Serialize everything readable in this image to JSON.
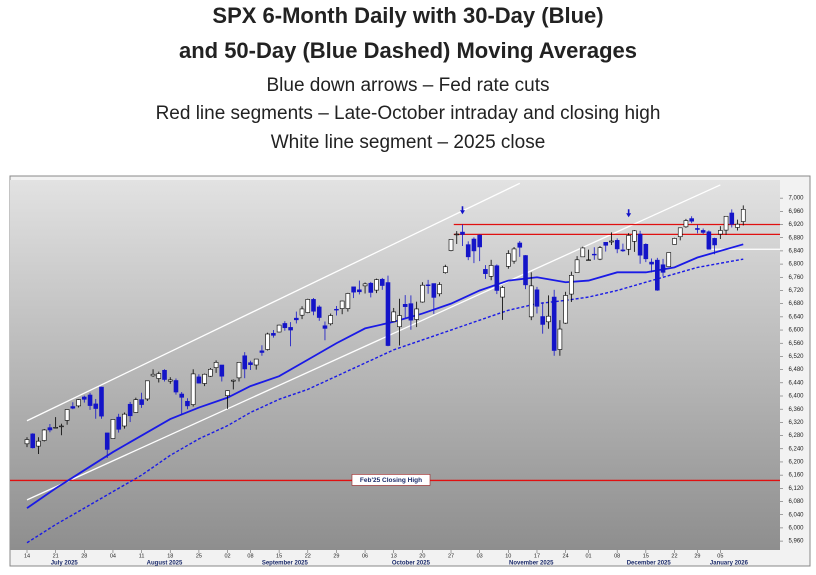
{
  "chart_data": {
    "type": "candlestick",
    "title": [
      "SPX 6-Month Daily with 30-Day (Blue)",
      "and 50-Day (Blue Dashed) Moving Averages"
    ],
    "subtitle": [
      "Blue down arrows – Fed rate cuts",
      "Red line segments – Late-October intraday and closing high",
      "White line segment – 2025 close"
    ],
    "x": [
      "2025-07-14",
      "2025-07-15",
      "2025-07-16",
      "2025-07-17",
      "2025-07-18",
      "2025-07-21",
      "2025-07-22",
      "2025-07-23",
      "2025-07-24",
      "2025-07-25",
      "2025-07-28",
      "2025-07-29",
      "2025-07-30",
      "2025-07-31",
      "2025-08-01",
      "2025-08-04",
      "2025-08-05",
      "2025-08-06",
      "2025-08-07",
      "2025-08-08",
      "2025-08-11",
      "2025-08-12",
      "2025-08-13",
      "2025-08-14",
      "2025-08-15",
      "2025-08-18",
      "2025-08-19",
      "2025-08-20",
      "2025-08-21",
      "2025-08-22",
      "2025-08-25",
      "2025-08-26",
      "2025-08-27",
      "2025-08-28",
      "2025-08-29",
      "2025-09-02",
      "2025-09-03",
      "2025-09-04",
      "2025-09-05",
      "2025-09-08",
      "2025-09-09",
      "2025-09-10",
      "2025-09-11",
      "2025-09-12",
      "2025-09-15",
      "2025-09-16",
      "2025-09-17",
      "2025-09-18",
      "2025-09-19",
      "2025-09-22",
      "2025-09-23",
      "2025-09-24",
      "2025-09-25",
      "2025-09-26",
      "2025-09-29",
      "2025-09-30",
      "2025-10-01",
      "2025-10-02",
      "2025-10-03",
      "2025-10-06",
      "2025-10-07",
      "2025-10-08",
      "2025-10-09",
      "2025-10-10",
      "2025-10-13",
      "2025-10-14",
      "2025-10-15",
      "2025-10-16",
      "2025-10-17",
      "2025-10-20",
      "2025-10-21",
      "2025-10-22",
      "2025-10-23",
      "2025-10-24",
      "2025-10-27",
      "2025-10-28",
      "2025-10-29",
      "2025-10-30",
      "2025-10-31",
      "2025-11-03",
      "2025-11-04",
      "2025-11-05",
      "2025-11-06",
      "2025-11-07",
      "2025-11-10",
      "2025-11-11",
      "2025-11-12",
      "2025-11-13",
      "2025-11-14",
      "2025-11-17",
      "2025-11-18",
      "2025-11-19",
      "2025-11-20",
      "2025-11-21",
      "2025-11-24",
      "2025-11-25",
      "2025-11-26",
      "2025-11-28",
      "2025-12-01",
      "2025-12-02",
      "2025-12-03",
      "2025-12-04",
      "2025-12-05",
      "2025-12-08",
      "2025-12-09",
      "2025-12-10",
      "2025-12-11",
      "2025-12-12",
      "2025-12-15",
      "2025-12-16",
      "2025-12-17",
      "2025-12-18",
      "2025-12-19",
      "2025-12-22",
      "2025-12-23",
      "2025-12-24",
      "2025-12-26",
      "2025-12-29",
      "2025-12-30",
      "2025-12-31",
      "2026-01-02",
      "2026-01-05",
      "2026-01-06",
      "2026-01-07",
      "2026-01-08",
      "2026-01-09"
    ],
    "ohlc": [
      [
        6255,
        6275,
        6245,
        6268
      ],
      [
        6285,
        6287,
        6241,
        6243
      ],
      [
        6248,
        6275,
        6224,
        6263
      ],
      [
        6265,
        6300,
        6262,
        6297
      ],
      [
        6304,
        6315,
        6290,
        6297
      ],
      [
        6304,
        6336,
        6303,
        6305
      ],
      [
        6307,
        6316,
        6281,
        6309
      ],
      [
        6326,
        6360,
        6313,
        6359
      ],
      [
        6368,
        6381,
        6360,
        6363
      ],
      [
        6370,
        6390,
        6365,
        6389
      ],
      [
        6397,
        6401,
        6380,
        6390
      ],
      [
        6403,
        6410,
        6358,
        6371
      ],
      [
        6376,
        6391,
        6331,
        6362
      ],
      [
        6427,
        6428,
        6331,
        6339
      ],
      [
        6288,
        6288,
        6212,
        6238
      ],
      [
        6271,
        6330,
        6271,
        6329
      ],
      [
        6336,
        6346,
        6289,
        6299
      ],
      [
        6309,
        6350,
        6301,
        6345
      ],
      [
        6375,
        6382,
        6321,
        6340
      ],
      [
        6350,
        6395,
        6349,
        6389
      ],
      [
        6389,
        6410,
        6364,
        6374
      ],
      [
        6391,
        6446,
        6385,
        6446
      ],
      [
        6461,
        6481,
        6458,
        6466
      ],
      [
        6453,
        6474,
        6441,
        6468
      ],
      [
        6478,
        6481,
        6444,
        6450
      ],
      [
        6445,
        6457,
        6437,
        6449
      ],
      [
        6447,
        6453,
        6404,
        6412
      ],
      [
        6406,
        6412,
        6343,
        6396
      ],
      [
        6384,
        6393,
        6360,
        6370
      ],
      [
        6374,
        6481,
        6368,
        6467
      ],
      [
        6458,
        6466,
        6438,
        6439
      ],
      [
        6438,
        6468,
        6430,
        6466
      ],
      [
        6460,
        6485,
        6458,
        6481
      ],
      [
        6486,
        6508,
        6470,
        6502
      ],
      [
        6494,
        6494,
        6444,
        6460
      ],
      [
        6401,
        6417,
        6361,
        6416
      ],
      [
        6445,
        6450,
        6420,
        6448
      ],
      [
        6455,
        6502,
        6444,
        6502
      ],
      [
        6522,
        6533,
        6454,
        6482
      ],
      [
        6501,
        6507,
        6479,
        6495
      ],
      [
        6494,
        6512,
        6480,
        6512
      ],
      [
        6537,
        6554,
        6522,
        6532
      ],
      [
        6541,
        6592,
        6538,
        6588
      ],
      [
        6590,
        6600,
        6577,
        6584
      ],
      [
        6594,
        6616,
        6593,
        6615
      ],
      [
        6620,
        6627,
        6598,
        6607
      ],
      [
        6608,
        6624,
        6551,
        6600
      ],
      [
        6636,
        6656,
        6620,
        6631
      ],
      [
        6645,
        6672,
        6633,
        6664
      ],
      [
        6653,
        6695,
        6651,
        6693
      ],
      [
        6693,
        6697,
        6645,
        6657
      ],
      [
        6670,
        6675,
        6628,
        6638
      ],
      [
        6613,
        6626,
        6569,
        6605
      ],
      [
        6619,
        6650,
        6614,
        6644
      ],
      [
        6663,
        6673,
        6644,
        6661
      ],
      [
        6665,
        6689,
        6648,
        6688
      ],
      [
        6665,
        6713,
        6656,
        6711
      ],
      [
        6731,
        6731,
        6697,
        6715
      ],
      [
        6722,
        6750,
        6708,
        6716
      ],
      [
        6734,
        6744,
        6711,
        6740
      ],
      [
        6742,
        6746,
        6699,
        6714
      ],
      [
        6721,
        6756,
        6712,
        6753
      ],
      [
        6754,
        6758,
        6722,
        6735
      ],
      [
        6744,
        6765,
        6551,
        6553
      ],
      [
        6626,
        6667,
        6626,
        6655
      ],
      [
        6610,
        6695,
        6553,
        6644
      ],
      [
        6678,
        6706,
        6638,
        6671
      ],
      [
        6680,
        6705,
        6601,
        6630
      ],
      [
        6632,
        6686,
        6609,
        6664
      ],
      [
        6685,
        6745,
        6683,
        6736
      ],
      [
        6737,
        6752,
        6710,
        6735
      ],
      [
        6741,
        6741,
        6649,
        6699
      ],
      [
        6710,
        6745,
        6702,
        6738
      ],
      [
        6774,
        6798,
        6771,
        6792
      ],
      [
        6841,
        6876,
        6839,
        6875
      ],
      [
        6890,
        6900,
        6861,
        6891
      ],
      [
        6897,
        6920,
        6855,
        6890
      ],
      [
        6859,
        6869,
        6812,
        6822
      ],
      [
        6876,
        6881,
        6803,
        6840
      ],
      [
        6888,
        6890,
        6809,
        6852
      ],
      [
        6784,
        6797,
        6755,
        6771
      ],
      [
        6763,
        6813,
        6751,
        6796
      ],
      [
        6795,
        6799,
        6709,
        6720
      ],
      [
        6700,
        6734,
        6631,
        6729
      ],
      [
        6793,
        6842,
        6786,
        6832
      ],
      [
        6809,
        6852,
        6801,
        6846
      ],
      [
        6864,
        6870,
        6822,
        6851
      ],
      [
        6826,
        6827,
        6724,
        6737
      ],
      [
        6640,
        6775,
        6630,
        6734
      ],
      [
        6722,
        6731,
        6650,
        6672
      ],
      [
        6641,
        6684,
        6589,
        6617
      ],
      [
        6625,
        6705,
        6604,
        6642
      ],
      [
        6700,
        6722,
        6522,
        6538
      ],
      [
        6541,
        6630,
        6522,
        6603
      ],
      [
        6621,
        6716,
        6619,
        6705
      ],
      [
        6709,
        6777,
        6685,
        6766
      ],
      [
        6774,
        6824,
        6774,
        6813
      ],
      [
        6822,
        6853,
        6822,
        6849
      ],
      [
        6813,
        6844,
        6811,
        6813
      ],
      [
        6830,
        6851,
        6813,
        6829
      ],
      [
        6815,
        6855,
        6812,
        6850
      ],
      [
        6866,
        6867,
        6838,
        6857
      ],
      [
        6867,
        6896,
        6858,
        6870
      ],
      [
        6872,
        6878,
        6833,
        6846
      ],
      [
        6843,
        6862,
        6837,
        6840
      ],
      [
        6845,
        6894,
        6827,
        6887
      ],
      [
        6869,
        6903,
        6837,
        6901
      ],
      [
        6891,
        6901,
        6801,
        6827
      ],
      [
        6860,
        6863,
        6806,
        6816
      ],
      [
        6806,
        6817,
        6775,
        6800
      ],
      [
        6812,
        6819,
        6719,
        6721
      ],
      [
        6798,
        6816,
        6763,
        6775
      ],
      [
        6792,
        6835,
        6791,
        6835
      ],
      [
        6860,
        6880,
        6860,
        6878
      ],
      [
        6883,
        6911,
        6872,
        6910
      ],
      [
        6913,
        6937,
        6910,
        6932
      ],
      [
        6938,
        6945,
        6924,
        6930
      ],
      [
        6908,
        6919,
        6893,
        6905
      ],
      [
        6902,
        6908,
        6891,
        6896
      ],
      [
        6898,
        6902,
        6844,
        6845
      ],
      [
        6878,
        6880,
        6830,
        6858
      ],
      [
        6891,
        6915,
        6876,
        6902
      ],
      [
        6903,
        6945,
        6889,
        6945
      ],
      [
        6955,
        6966,
        6911,
        6921
      ],
      [
        6911,
        6935,
        6902,
        6921
      ],
      [
        6929,
        6978,
        6917,
        6966
      ]
    ],
    "up_color": "#ffffff",
    "down_color": "#1414c8",
    "series": [
      {
        "color": "#1a1ae6",
        "dashed": false,
        "x": [
          "2025-07-14",
          "2025-07-21",
          "2025-07-28",
          "2025-08-04",
          "2025-08-11",
          "2025-08-18",
          "2025-08-25",
          "2025-09-02",
          "2025-09-08",
          "2025-09-15",
          "2025-09-22",
          "2025-09-29",
          "2025-10-06",
          "2025-10-13",
          "2025-10-20",
          "2025-10-27",
          "2025-11-03",
          "2025-11-10",
          "2025-11-17",
          "2025-11-24",
          "2025-12-01",
          "2025-12-08",
          "2025-12-15",
          "2025-12-22",
          "2025-12-29",
          "2026-01-09"
        ],
        "values": [
          6060,
          6120,
          6175,
          6230,
          6280,
          6330,
          6365,
          6395,
          6430,
          6460,
          6510,
          6560,
          6605,
          6625,
          6650,
          6680,
          6720,
          6750,
          6760,
          6745,
          6750,
          6775,
          6775,
          6790,
          6820,
          6860
        ]
      },
      {
        "color": "#1a1ae6",
        "dashed": true,
        "x": [
          "2025-07-14",
          "2025-07-21",
          "2025-07-28",
          "2025-08-04",
          "2025-08-11",
          "2025-08-18",
          "2025-08-25",
          "2025-09-02",
          "2025-09-08",
          "2025-09-15",
          "2025-09-22",
          "2025-09-29",
          "2025-10-06",
          "2025-10-13",
          "2025-10-20",
          "2025-10-27",
          "2025-11-03",
          "2025-11-10",
          "2025-11-17",
          "2025-11-24",
          "2025-12-01",
          "2025-12-08",
          "2025-12-15",
          "2025-12-22",
          "2025-12-29",
          "2026-01-09"
        ],
        "values": [
          5955,
          6010,
          6060,
          6110,
          6160,
          6220,
          6270,
          6310,
          6350,
          6390,
          6420,
          6460,
          6500,
          6540,
          6570,
          6600,
          6630,
          6660,
          6680,
          6690,
          6700,
          6720,
          6745,
          6770,
          6790,
          6815
        ]
      }
    ],
    "trendlines": [
      {
        "color": "#ffffff",
        "x": [
          "2025-07-14",
          "2025-11-12"
        ],
        "y": [
          6325,
          7045
        ]
      },
      {
        "color": "#ffffff",
        "x": [
          "2025-07-14",
          "2026-01-05"
        ],
        "y": [
          6085,
          7040
        ]
      }
    ],
    "hlines": [
      {
        "value": 6920,
        "color": "#e01010",
        "from": "2025-10-28"
      },
      {
        "value": 6890,
        "color": "#e01010",
        "from": "2025-10-28"
      },
      {
        "value": 6144,
        "color": "#e01010",
        "label": "Feb'25 Closing High"
      },
      {
        "value": 6845,
        "color": "#ffffff",
        "from": "2025-12-31"
      }
    ],
    "arrows": [
      {
        "x": "2025-10-29",
        "y": 6951,
        "color": "#1414c8"
      },
      {
        "x": "2025-12-10",
        "y": 6942,
        "color": "#1414c8"
      }
    ],
    "ylim": [
      5933,
      7055
    ],
    "yticks": [
      {
        "value": 5960,
        "label": "5,960"
      },
      {
        "value": 6000,
        "label": "6,000"
      },
      {
        "value": 6040,
        "label": "6,040"
      },
      {
        "value": 6080,
        "label": "6,080"
      },
      {
        "value": 6120,
        "label": "6,120"
      },
      {
        "value": 6160,
        "label": "6,160"
      },
      {
        "value": 6200,
        "label": "6,200"
      },
      {
        "value": 6240,
        "label": "6,240"
      },
      {
        "value": 6280,
        "label": "6,280"
      },
      {
        "value": 6320,
        "label": "6,320"
      },
      {
        "value": 6360,
        "label": "6,360"
      },
      {
        "value": 6400,
        "label": "6,400"
      },
      {
        "value": 6440,
        "label": "6,440"
      },
      {
        "value": 6480,
        "label": "6,480"
      },
      {
        "value": 6520,
        "label": "6,520"
      },
      {
        "value": 6560,
        "label": "6,560"
      },
      {
        "value": 6600,
        "label": "6,600"
      },
      {
        "value": 6640,
        "label": "6,640"
      },
      {
        "value": 6680,
        "label": "6,680"
      },
      {
        "value": 6720,
        "label": "6,720"
      },
      {
        "value": 6760,
        "label": "6,760"
      },
      {
        "value": 6800,
        "label": "6,800"
      },
      {
        "value": 6840,
        "label": "6,840"
      },
      {
        "value": 6880,
        "label": "6,880"
      },
      {
        "value": 6920,
        "label": "6,920"
      },
      {
        "value": 6960,
        "label": "6,960"
      },
      {
        "value": 7000,
        "label": "7,000"
      }
    ],
    "xticks": [
      {
        "value": "2025-07-14",
        "label": "14"
      },
      {
        "value": "2025-07-21",
        "label": "21"
      },
      {
        "value": "2025-07-28",
        "label": "28"
      },
      {
        "value": "2025-08-04",
        "label": "04"
      },
      {
        "value": "2025-08-11",
        "label": "11"
      },
      {
        "value": "2025-08-18",
        "label": "18"
      },
      {
        "value": "2025-08-25",
        "label": "25"
      },
      {
        "value": "2025-09-02",
        "label": "02"
      },
      {
        "value": "2025-09-08",
        "label": "08"
      },
      {
        "value": "2025-09-15",
        "label": "15"
      },
      {
        "value": "2025-09-22",
        "label": "22"
      },
      {
        "value": "2025-09-29",
        "label": "29"
      },
      {
        "value": "2025-10-06",
        "label": "06"
      },
      {
        "value": "2025-10-13",
        "label": "13"
      },
      {
        "value": "2025-10-20",
        "label": "20"
      },
      {
        "value": "2025-10-27",
        "label": "27"
      },
      {
        "value": "2025-11-03",
        "label": "03"
      },
      {
        "value": "2025-11-10",
        "label": "10"
      },
      {
        "value": "2025-11-17",
        "label": "17"
      },
      {
        "value": "2025-11-24",
        "label": "24"
      },
      {
        "value": "2025-12-01",
        "label": "01"
      },
      {
        "value": "2025-12-08",
        "label": "08"
      },
      {
        "value": "2025-12-15",
        "label": "15"
      },
      {
        "value": "2025-12-22",
        "label": "22"
      },
      {
        "value": "2025-12-29",
        "label": "29"
      },
      {
        "value": "2026-01-05",
        "label": "05"
      }
    ],
    "months": [
      {
        "value": "2025-07",
        "label": "July 2025"
      },
      {
        "value": "2025-08",
        "label": "August 2025"
      },
      {
        "value": "2025-09",
        "label": "September 2025"
      },
      {
        "value": "2025-10",
        "label": "October 2025"
      },
      {
        "value": "2025-11",
        "label": "November 2025"
      },
      {
        "value": "2025-12",
        "label": "December 2025"
      },
      {
        "value": "2026-01",
        "label": "January 2026"
      }
    ]
  }
}
